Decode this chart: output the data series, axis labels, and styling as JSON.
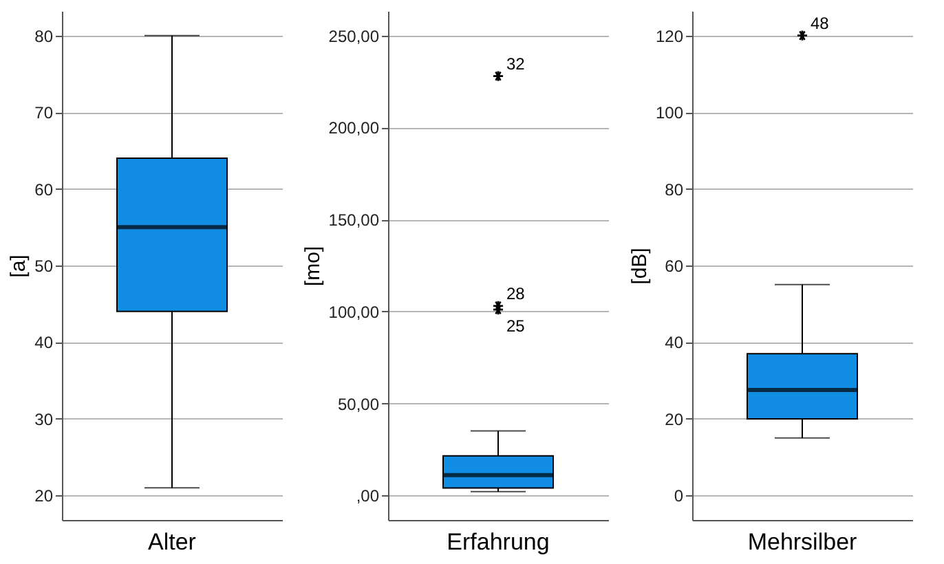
{
  "chart_data": [
    {
      "type": "box",
      "categories": [
        "Alter"
      ],
      "ylabel": "[a]",
      "ylim": [
        16.8,
        83.2
      ],
      "yticks": [
        20,
        30,
        40,
        50,
        60,
        70,
        80
      ],
      "grid": "y",
      "color": "#118ee4",
      "boxes": [
        {
          "low": 21,
          "q1": 44,
          "median": 55,
          "q3": 64,
          "high": 80
        }
      ]
    },
    {
      "type": "box",
      "categories": [
        "Erfahrung"
      ],
      "ylabel": "[mo]",
      "ylim": [
        -13.4,
        263.4
      ],
      "yticks": [
        {
          "value": 0,
          "label": ",00"
        },
        {
          "value": 50,
          "label": "50,00"
        },
        {
          "value": 100,
          "label": "100,00"
        },
        {
          "value": 150,
          "label": "150,00"
        },
        {
          "value": 200,
          "label": "200,00"
        },
        {
          "value": 250,
          "label": "250,00"
        }
      ],
      "grid": "y",
      "marker": "star",
      "color": "#118ee4",
      "boxes": [
        {
          "low": 2,
          "q1": 4,
          "median": 11,
          "q3": 21.5,
          "high": 35,
          "outliers": [
            228,
            103,
            101
          ]
        }
      ],
      "annotations": [
        "32",
        "28",
        "25"
      ]
    },
    {
      "type": "box",
      "categories": [
        "Mehrsilber"
      ],
      "ylabel": "[dB]",
      "ylim": [
        -6.4,
        126.4
      ],
      "yticks": [
        0,
        20,
        40,
        60,
        80,
        100,
        120
      ],
      "grid": "y",
      "marker": "star",
      "color": "#118ee4",
      "boxes": [
        {
          "low": 15,
          "q1": 20,
          "median": 27.5,
          "q3": 37,
          "high": 55,
          "outliers": [
            120
          ]
        }
      ],
      "annotations": [
        "48"
      ]
    }
  ]
}
